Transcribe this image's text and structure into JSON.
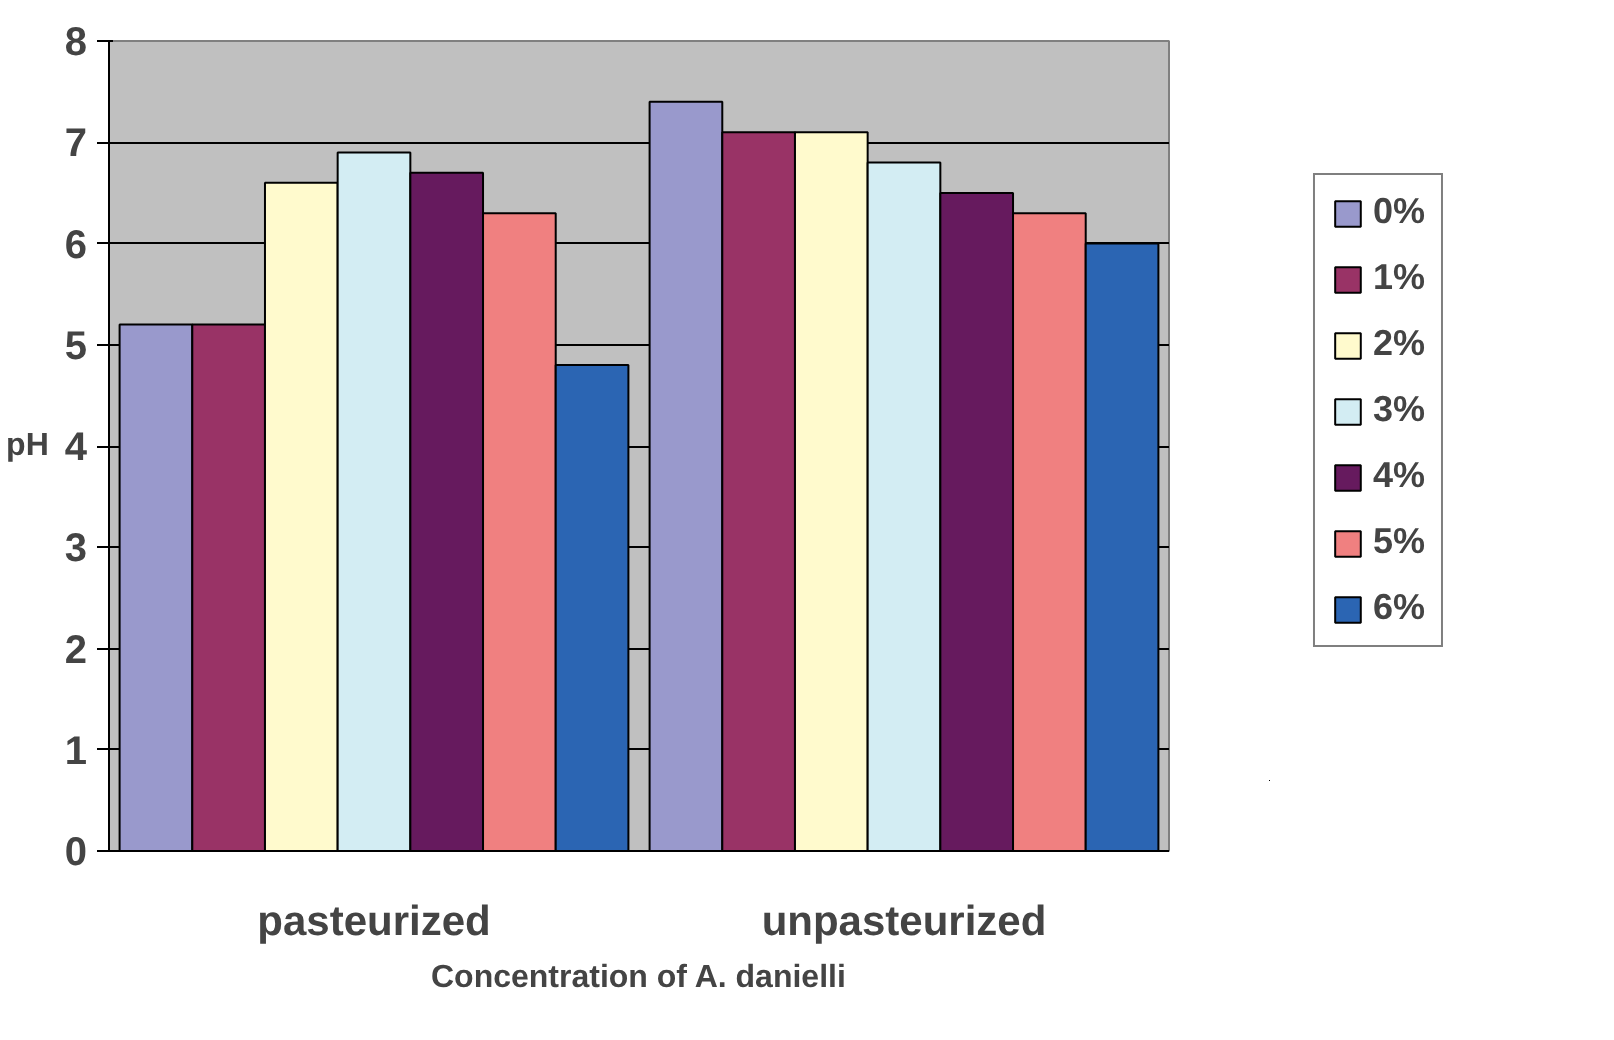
{
  "chart_data": {
    "type": "bar",
    "xlabel": "Concentration of A. danielli",
    "ylabel": "pH",
    "categories": [
      "pasteurized",
      "unpasteurized"
    ],
    "series": [
      {
        "name": "0%",
        "color": "#9999cc",
        "values": [
          5.2,
          7.4
        ]
      },
      {
        "name": "1%",
        "color": "#993366",
        "values": [
          5.2,
          7.1
        ]
      },
      {
        "name": "2%",
        "color": "#fffacd",
        "values": [
          6.6,
          7.1
        ]
      },
      {
        "name": "3%",
        "color": "#d3edf3",
        "values": [
          6.9,
          6.8
        ]
      },
      {
        "name": "4%",
        "color": "#661a5e",
        "values": [
          6.7,
          6.5
        ]
      },
      {
        "name": "5%",
        "color": "#f08080",
        "values": [
          6.3,
          6.3
        ]
      },
      {
        "name": "6%",
        "color": "#2b65b3",
        "values": [
          4.8,
          6.0
        ]
      }
    ],
    "ylim": [
      0,
      8
    ],
    "yticks": [
      0,
      1,
      2,
      3,
      4,
      5,
      6,
      7,
      8
    ],
    "grid": "y",
    "legend": "right"
  }
}
